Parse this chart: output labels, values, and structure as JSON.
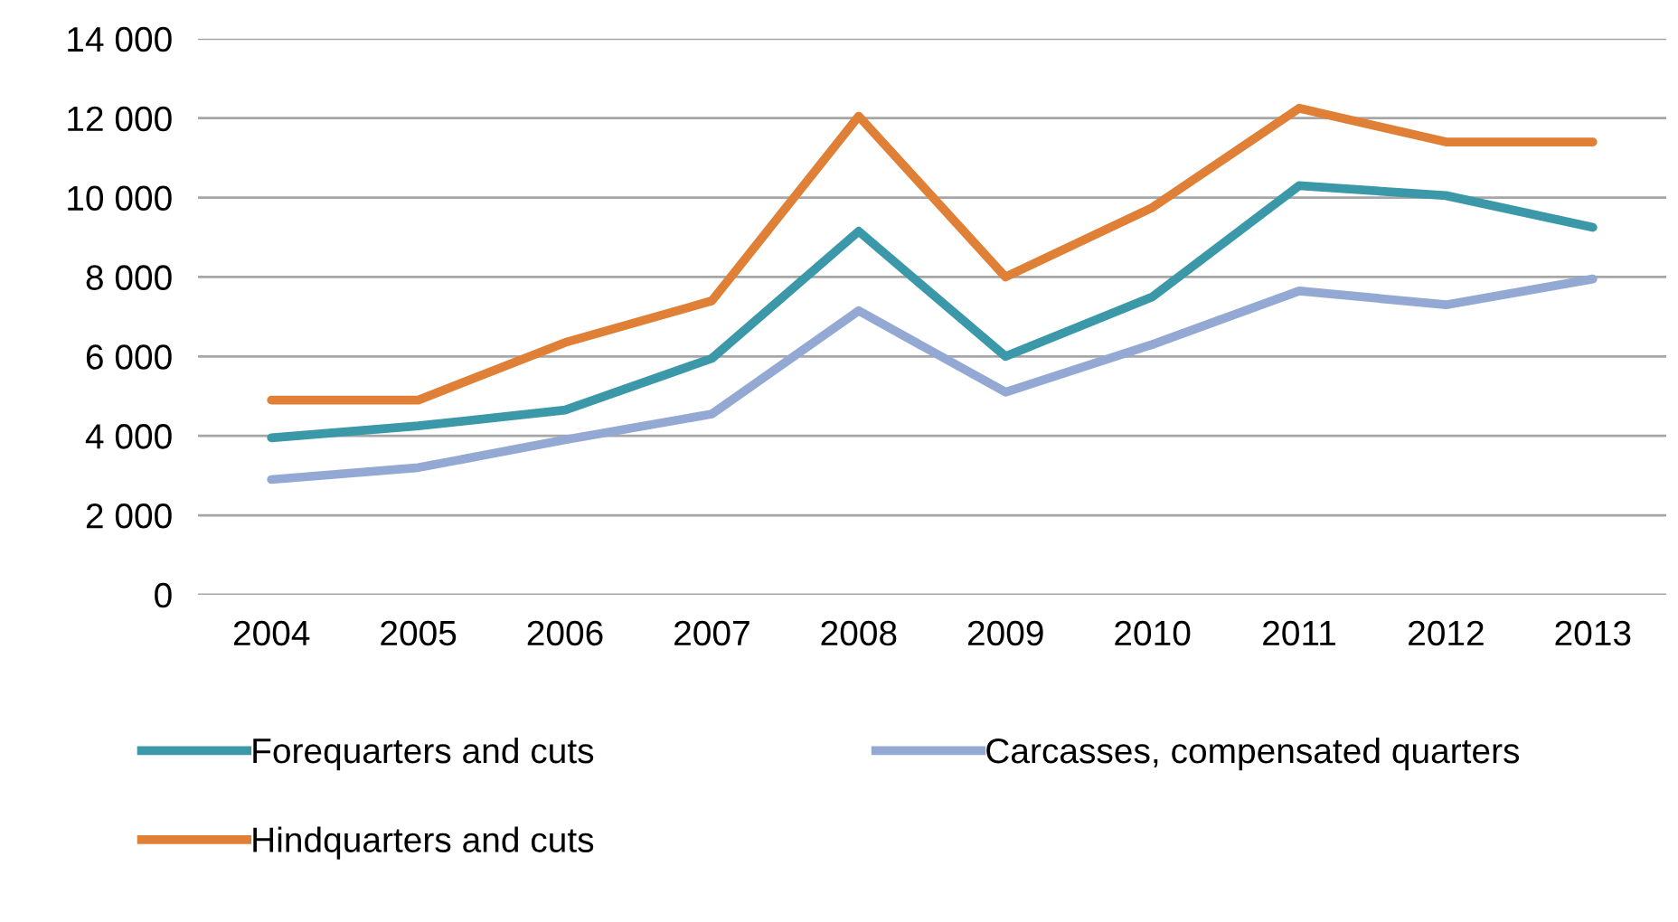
{
  "chart_data": {
    "type": "line",
    "categories": [
      "2004",
      "2005",
      "2006",
      "2007",
      "2008",
      "2009",
      "2010",
      "2011",
      "2012",
      "2013"
    ],
    "series": [
      {
        "name": "Forequarters and cuts",
        "color": "#3b98a8",
        "values": [
          3950,
          4250,
          4650,
          5950,
          9150,
          6000,
          7500,
          10300,
          10050,
          9250
        ]
      },
      {
        "name": "Hindquarters and cuts",
        "color": "#e07f36",
        "values": [
          4900,
          4900,
          6350,
          7400,
          12050,
          8000,
          9750,
          12250,
          11400,
          11400
        ]
      },
      {
        "name": "Carcasses, compensated quarters",
        "color": "#93a9d3",
        "values": [
          2900,
          3200,
          3900,
          4550,
          7150,
          5100,
          6300,
          7650,
          7300,
          7950
        ]
      }
    ],
    "ylim": [
      0,
      14000
    ],
    "yticks": [
      0,
      {
        "value": 2000,
        "label": "2 000"
      },
      {
        "value": 4000,
        "label": "4 000"
      },
      {
        "value": 6000,
        "label": "6 000"
      },
      {
        "value": 8000,
        "label": "8 000"
      },
      {
        "value": 10000,
        "label": "10 000"
      },
      {
        "value": 12000,
        "label": "12 000"
      },
      {
        "value": 14000,
        "label": "14 000"
      }
    ],
    "grid": "y",
    "legend": "bottom",
    "marker": "none",
    "line_style": "solid"
  }
}
